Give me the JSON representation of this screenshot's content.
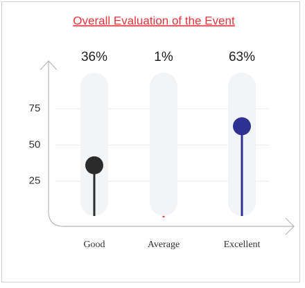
{
  "chart_data": {
    "type": "lollipop",
    "title": "Overall Evaluation of the Event",
    "categories": [
      "Good",
      "Average",
      "Excellent"
    ],
    "values": [
      36,
      1,
      63
    ],
    "value_labels": [
      "36%",
      "1%",
      "63%"
    ],
    "colors": [
      "#2b2b2b",
      "#e8333a",
      "#2e3192"
    ],
    "ylim": [
      0,
      100
    ],
    "yticks": [
      25,
      50,
      75
    ],
    "grid": true
  }
}
